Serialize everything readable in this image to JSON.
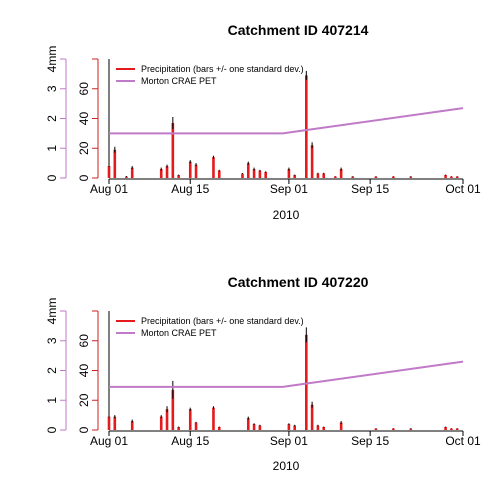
{
  "colors": {
    "precip": "#e41a1c",
    "precip_axis": "#cc2222",
    "pet": "#c07ac8",
    "errorbar": "#000000"
  },
  "chart_data": [
    {
      "type": "bar",
      "title": "Catchment ID 407214",
      "xlabel": "2010",
      "x_range": [
        "2010-08-01",
        "2010-10-01"
      ],
      "x_ticks": [
        {
          "date": "2010-08-01",
          "label": "Aug 01"
        },
        {
          "date": "2010-08-15",
          "label": "Aug 15"
        },
        {
          "date": "2010-09-01",
          "label": "Sep 01"
        },
        {
          "date": "2010-09-15",
          "label": "Sep 15"
        },
        {
          "date": "2010-10-01",
          "label": "Oct 01"
        }
      ],
      "precip_axis": {
        "ylim": [
          0,
          80
        ],
        "ticks": [
          0,
          20,
          40,
          60
        ]
      },
      "pet_axis": {
        "ylim": [
          0,
          4
        ],
        "ticks": [
          "0",
          "1",
          "2",
          "3",
          "4mm"
        ]
      },
      "legend": {
        "position": "top-left",
        "entries": [
          "Precipitation (bars +/- one standard dev.)",
          "Morton CRAE PET"
        ]
      },
      "series": [
        {
          "name": "Precipitation (bars +/- one standard dev.)",
          "kind": "bar",
          "axis": "precip",
          "points": [
            {
              "date": "2010-08-01",
              "value": 8,
              "sd": 0.5
            },
            {
              "date": "2010-08-02",
              "value": 19,
              "sd": 2
            },
            {
              "date": "2010-08-04",
              "value": 1,
              "sd": 0.3
            },
            {
              "date": "2010-08-05",
              "value": 7,
              "sd": 1
            },
            {
              "date": "2010-08-10",
              "value": 6,
              "sd": 1
            },
            {
              "date": "2010-08-11",
              "value": 8,
              "sd": 1
            },
            {
              "date": "2010-08-12",
              "value": 37,
              "sd": 4
            },
            {
              "date": "2010-08-13",
              "value": 2,
              "sd": 0.3
            },
            {
              "date": "2010-08-15",
              "value": 11,
              "sd": 1
            },
            {
              "date": "2010-08-16",
              "value": 9,
              "sd": 1
            },
            {
              "date": "2010-08-19",
              "value": 14,
              "sd": 1
            },
            {
              "date": "2010-08-20",
              "value": 5,
              "sd": 0.5
            },
            {
              "date": "2010-08-24",
              "value": 3,
              "sd": 0.3
            },
            {
              "date": "2010-08-25",
              "value": 10,
              "sd": 1
            },
            {
              "date": "2010-08-26",
              "value": 6,
              "sd": 1
            },
            {
              "date": "2010-08-27",
              "value": 5,
              "sd": 0.5
            },
            {
              "date": "2010-08-28",
              "value": 4,
              "sd": 0.5
            },
            {
              "date": "2010-09-01",
              "value": 6,
              "sd": 1
            },
            {
              "date": "2010-09-02",
              "value": 2,
              "sd": 0.3
            },
            {
              "date": "2010-09-04",
              "value": 69,
              "sd": 3
            },
            {
              "date": "2010-09-05",
              "value": 22,
              "sd": 2
            },
            {
              "date": "2010-09-06",
              "value": 3,
              "sd": 0.5
            },
            {
              "date": "2010-09-07",
              "value": 3,
              "sd": 0.5
            },
            {
              "date": "2010-09-09",
              "value": 1,
              "sd": 0.2
            },
            {
              "date": "2010-09-10",
              "value": 6,
              "sd": 1
            },
            {
              "date": "2010-09-12",
              "value": 1,
              "sd": 0.2
            },
            {
              "date": "2010-09-16",
              "value": 1,
              "sd": 0.2
            },
            {
              "date": "2010-09-19",
              "value": 1,
              "sd": 0.2
            },
            {
              "date": "2010-09-22",
              "value": 1,
              "sd": 0.2
            },
            {
              "date": "2010-09-28",
              "value": 2,
              "sd": 0.3
            },
            {
              "date": "2010-09-29",
              "value": 1,
              "sd": 0.2
            },
            {
              "date": "2010-09-30",
              "value": 1,
              "sd": 0.2
            }
          ]
        },
        {
          "name": "Morton CRAE PET",
          "kind": "line",
          "axis": "pet",
          "points": [
            {
              "date": "2010-08-01",
              "value": 1.5
            },
            {
              "date": "2010-08-31",
              "value": 1.5
            },
            {
              "date": "2010-09-01",
              "value": 1.53
            },
            {
              "date": "2010-10-01",
              "value": 2.35
            }
          ]
        }
      ],
      "left_marker_line": {
        "date": "2010-08-01",
        "value": 80
      }
    },
    {
      "type": "bar",
      "title": "Catchment ID 407220",
      "xlabel": "2010",
      "x_range": [
        "2010-08-01",
        "2010-10-01"
      ],
      "x_ticks": [
        {
          "date": "2010-08-01",
          "label": "Aug 01"
        },
        {
          "date": "2010-08-15",
          "label": "Aug 15"
        },
        {
          "date": "2010-09-01",
          "label": "Sep 01"
        },
        {
          "date": "2010-09-15",
          "label": "Sep 15"
        },
        {
          "date": "2010-10-01",
          "label": "Oct 01"
        }
      ],
      "precip_axis": {
        "ylim": [
          0,
          80
        ],
        "ticks": [
          0,
          20,
          40,
          60
        ]
      },
      "pet_axis": {
        "ylim": [
          0,
          4
        ],
        "ticks": [
          "0",
          "1",
          "2",
          "3",
          "4mm"
        ]
      },
      "legend": {
        "position": "top-left",
        "entries": [
          "Precipitation (bars +/- one standard dev.)",
          "Morton CRAE PET"
        ]
      },
      "series": [
        {
          "name": "Precipitation (bars +/- one standard dev.)",
          "kind": "bar",
          "axis": "precip",
          "points": [
            {
              "date": "2010-08-01",
              "value": 9,
              "sd": 0.5
            },
            {
              "date": "2010-08-02",
              "value": 9,
              "sd": 1
            },
            {
              "date": "2010-08-05",
              "value": 6,
              "sd": 1
            },
            {
              "date": "2010-08-10",
              "value": 9,
              "sd": 1
            },
            {
              "date": "2010-08-11",
              "value": 14,
              "sd": 2
            },
            {
              "date": "2010-08-12",
              "value": 27,
              "sd": 6
            },
            {
              "date": "2010-08-13",
              "value": 2,
              "sd": 0.3
            },
            {
              "date": "2010-08-15",
              "value": 14,
              "sd": 1
            },
            {
              "date": "2010-08-16",
              "value": 5,
              "sd": 0.5
            },
            {
              "date": "2010-08-19",
              "value": 15,
              "sd": 1
            },
            {
              "date": "2010-08-20",
              "value": 2,
              "sd": 0.3
            },
            {
              "date": "2010-08-25",
              "value": 8,
              "sd": 1
            },
            {
              "date": "2010-08-26",
              "value": 4,
              "sd": 0.5
            },
            {
              "date": "2010-08-27",
              "value": 3,
              "sd": 0.5
            },
            {
              "date": "2010-09-01",
              "value": 4,
              "sd": 0.5
            },
            {
              "date": "2010-09-02",
              "value": 3,
              "sd": 0.5
            },
            {
              "date": "2010-09-04",
              "value": 64,
              "sd": 5
            },
            {
              "date": "2010-09-05",
              "value": 17,
              "sd": 2
            },
            {
              "date": "2010-09-06",
              "value": 3,
              "sd": 0.5
            },
            {
              "date": "2010-09-07",
              "value": 2,
              "sd": 0.3
            },
            {
              "date": "2010-09-10",
              "value": 5,
              "sd": 1
            },
            {
              "date": "2010-09-16",
              "value": 1,
              "sd": 0.2
            },
            {
              "date": "2010-09-19",
              "value": 1,
              "sd": 0.2
            },
            {
              "date": "2010-09-22",
              "value": 1,
              "sd": 0.2
            },
            {
              "date": "2010-09-28",
              "value": 2,
              "sd": 0.3
            },
            {
              "date": "2010-09-29",
              "value": 1,
              "sd": 0.2
            },
            {
              "date": "2010-09-30",
              "value": 1,
              "sd": 0.2
            }
          ]
        },
        {
          "name": "Morton CRAE PET",
          "kind": "line",
          "axis": "pet",
          "points": [
            {
              "date": "2010-08-01",
              "value": 1.45
            },
            {
              "date": "2010-08-31",
              "value": 1.45
            },
            {
              "date": "2010-09-01",
              "value": 1.48
            },
            {
              "date": "2010-10-01",
              "value": 2.3
            }
          ]
        }
      ],
      "left_marker_line": {
        "date": "2010-08-01",
        "value": 80
      }
    }
  ]
}
